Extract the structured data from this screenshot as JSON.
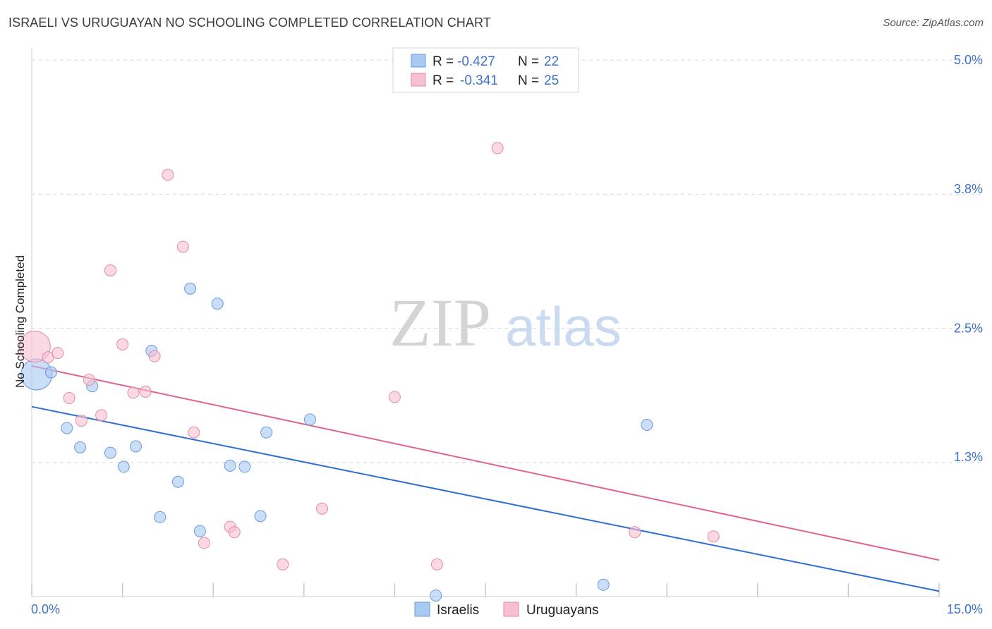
{
  "title": "ISRAELI VS URUGUAYAN NO SCHOOLING COMPLETED CORRELATION CHART",
  "source": "Source: ZipAtlas.com",
  "watermark": {
    "zip": "ZIP",
    "atlas": "atlas"
  },
  "colors": {
    "blue_fill": "#a9c8f2",
    "blue_stroke": "#6a9bdc",
    "blue_line": "#2e6fd0",
    "pink_fill": "#f7c0d0",
    "pink_stroke": "#e58aa6",
    "pink_line": "#e0648e",
    "grid": "#d9d9d9",
    "tick_text": "#3d72c8"
  },
  "legend": {
    "rows": [
      {
        "r_label": "R =",
        "r_value": "-0.427",
        "n_label": "N =",
        "n_value": "22",
        "series": "Israelis"
      },
      {
        "r_label": "R =",
        "r_value": "-0.341",
        "n_label": "N =",
        "n_value": "25",
        "series": "Uruguayans"
      }
    ]
  },
  "chart_data": {
    "type": "scatter",
    "title": "ISRAELI VS URUGUAYAN NO SCHOOLING COMPLETED CORRELATION CHART",
    "xlabel": "",
    "ylabel": "No Schooling Completed",
    "xlim": [
      0,
      15
    ],
    "ylim": [
      0,
      5.1
    ],
    "x_tick_labels": [
      {
        "value": 0,
        "label": "0.0%"
      },
      {
        "value": 15,
        "label": "15.0%"
      }
    ],
    "y_tick_labels": [
      {
        "value": 5.0,
        "label": "5.0%"
      },
      {
        "value": 3.8,
        "label": "3.8%"
      },
      {
        "value": 2.5,
        "label": "2.5%"
      },
      {
        "value": 1.3,
        "label": "1.3%"
      }
    ],
    "y_gridlines": [
      5.0,
      3.75,
      2.5,
      1.25
    ],
    "x_minor_ticks": [
      0,
      1.5,
      3,
      4.5,
      6,
      7.5,
      9,
      10.5,
      12,
      13.5,
      15
    ],
    "legend_position": "top-center",
    "series": [
      {
        "name": "Israelis",
        "color": "#a9c8f2",
        "r": -0.427,
        "n": 22,
        "trend": {
          "x0": 0,
          "y0": 1.77,
          "x1": 15,
          "y1": 0.05
        },
        "points": [
          {
            "x": 0.08,
            "y": 2.07,
            "big": true
          },
          {
            "x": 0.32,
            "y": 2.09
          },
          {
            "x": 1.0,
            "y": 1.96
          },
          {
            "x": 0.58,
            "y": 1.57
          },
          {
            "x": 0.8,
            "y": 1.39
          },
          {
            "x": 1.3,
            "y": 1.34
          },
          {
            "x": 1.52,
            "y": 1.21
          },
          {
            "x": 1.72,
            "y": 1.4
          },
          {
            "x": 1.98,
            "y": 2.29
          },
          {
            "x": 2.12,
            "y": 0.74
          },
          {
            "x": 2.42,
            "y": 1.07
          },
          {
            "x": 2.62,
            "y": 2.87
          },
          {
            "x": 2.78,
            "y": 0.61
          },
          {
            "x": 3.07,
            "y": 2.73
          },
          {
            "x": 3.28,
            "y": 1.22
          },
          {
            "x": 3.52,
            "y": 1.21
          },
          {
            "x": 3.78,
            "y": 0.75
          },
          {
            "x": 3.88,
            "y": 1.53
          },
          {
            "x": 4.6,
            "y": 1.65
          },
          {
            "x": 6.68,
            "y": 0.01
          },
          {
            "x": 9.45,
            "y": 0.11
          },
          {
            "x": 10.17,
            "y": 1.6
          }
        ]
      },
      {
        "name": "Uruguayans",
        "color": "#f7c0d0",
        "r": -0.341,
        "n": 25,
        "trend": {
          "x0": 0,
          "y0": 2.15,
          "x1": 15,
          "y1": 0.34
        },
        "points": [
          {
            "x": 0.05,
            "y": 2.33,
            "big": true
          },
          {
            "x": 0.27,
            "y": 2.23
          },
          {
            "x": 0.43,
            "y": 2.27
          },
          {
            "x": 0.62,
            "y": 1.85
          },
          {
            "x": 0.82,
            "y": 1.64
          },
          {
            "x": 0.95,
            "y": 2.02
          },
          {
            "x": 1.15,
            "y": 1.69
          },
          {
            "x": 1.3,
            "y": 3.04
          },
          {
            "x": 1.5,
            "y": 2.35
          },
          {
            "x": 1.68,
            "y": 1.9
          },
          {
            "x": 1.88,
            "y": 1.91
          },
          {
            "x": 2.03,
            "y": 2.24
          },
          {
            "x": 2.25,
            "y": 3.93
          },
          {
            "x": 2.5,
            "y": 3.26
          },
          {
            "x": 2.68,
            "y": 1.53
          },
          {
            "x": 2.85,
            "y": 0.5
          },
          {
            "x": 3.28,
            "y": 0.65
          },
          {
            "x": 3.35,
            "y": 0.6
          },
          {
            "x": 4.15,
            "y": 0.3
          },
          {
            "x": 4.8,
            "y": 0.82
          },
          {
            "x": 6.0,
            "y": 1.86
          },
          {
            "x": 6.7,
            "y": 0.3
          },
          {
            "x": 7.7,
            "y": 4.18
          },
          {
            "x": 9.97,
            "y": 0.6
          },
          {
            "x": 11.27,
            "y": 0.56
          }
        ]
      }
    ]
  }
}
